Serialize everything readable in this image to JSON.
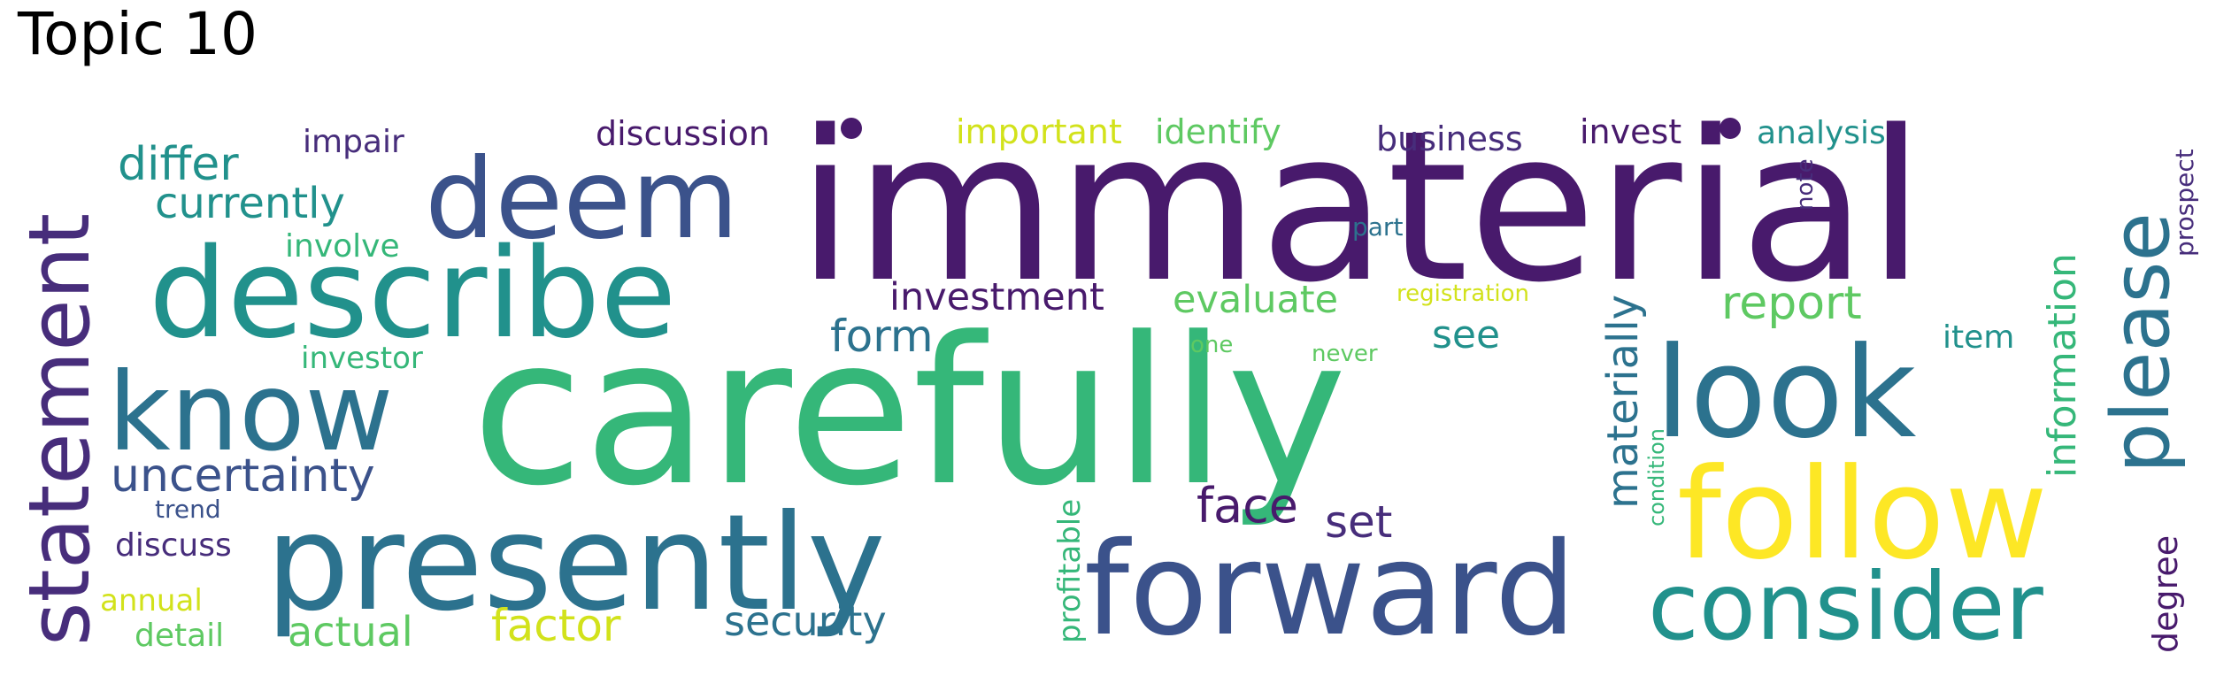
{
  "title": "Topic 10",
  "words": [
    {
      "text": "immaterial",
      "color": "#481a6c"
    },
    {
      "text": "carefully",
      "color": "#35b779"
    },
    {
      "text": "presently",
      "color": "#2c728e"
    },
    {
      "text": "forward",
      "color": "#3b528b"
    },
    {
      "text": "describe",
      "color": "#21918c"
    },
    {
      "text": "look",
      "color": "#2c728e"
    },
    {
      "text": "follow",
      "color": "#fde725"
    },
    {
      "text": "consider",
      "color": "#21918c"
    },
    {
      "text": "deem",
      "color": "#3b528b"
    },
    {
      "text": "know",
      "color": "#2c728e"
    },
    {
      "text": "statement",
      "color": "#472d7b"
    },
    {
      "text": "please",
      "color": "#2c728e"
    },
    {
      "text": "uncertainty",
      "color": "#3b528b"
    },
    {
      "text": "differ",
      "color": "#21918c"
    },
    {
      "text": "currently",
      "color": "#21918c"
    },
    {
      "text": "investment",
      "color": "#481a6c"
    },
    {
      "text": "evaluate",
      "color": "#5ec962"
    },
    {
      "text": "report",
      "color": "#5ec962"
    },
    {
      "text": "form",
      "color": "#2c728e"
    },
    {
      "text": "materially",
      "color": "#2c728e"
    },
    {
      "text": "information",
      "color": "#35b779"
    },
    {
      "text": "security",
      "color": "#2c728e"
    },
    {
      "text": "factor",
      "color": "#d2e21b"
    },
    {
      "text": "actual",
      "color": "#5ec962"
    },
    {
      "text": "face",
      "color": "#481a6c"
    },
    {
      "text": "set",
      "color": "#472d7b"
    },
    {
      "text": "see",
      "color": "#21918c"
    },
    {
      "text": "discussion",
      "color": "#481a6c"
    },
    {
      "text": "important",
      "color": "#d2e21b"
    },
    {
      "text": "identify",
      "color": "#5ec962"
    },
    {
      "text": "business",
      "color": "#472d7b"
    },
    {
      "text": "invest",
      "color": "#481a6c"
    },
    {
      "text": "analysis",
      "color": "#21918c"
    },
    {
      "text": "impair",
      "color": "#472d7b"
    },
    {
      "text": "involve",
      "color": "#35b779"
    },
    {
      "text": "investor",
      "color": "#35b779"
    },
    {
      "text": "discuss",
      "color": "#472d7b"
    },
    {
      "text": "annual",
      "color": "#d2e21b"
    },
    {
      "text": "detail",
      "color": "#5ec962"
    },
    {
      "text": "trend",
      "color": "#3b528b"
    },
    {
      "text": "degree",
      "color": "#481a6c"
    },
    {
      "text": "item",
      "color": "#21918c"
    },
    {
      "text": "profitable",
      "color": "#35b779"
    },
    {
      "text": "condition",
      "color": "#35b779"
    },
    {
      "text": "registration",
      "color": "#d2e21b"
    },
    {
      "text": "one",
      "color": "#5ec962"
    },
    {
      "text": "never",
      "color": "#5ec962"
    },
    {
      "text": "part",
      "color": "#2c728e"
    },
    {
      "text": "note",
      "color": "#472d7b"
    },
    {
      "text": "prospect",
      "color": "#472d7b"
    }
  ]
}
